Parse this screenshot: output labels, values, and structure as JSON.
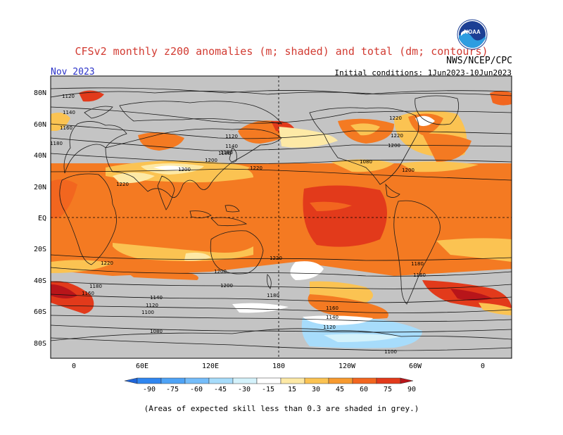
{
  "header": {
    "title": "CFSv2 monthly z200 anomalies (m; shaded) and total (dm; contours)",
    "month": "Nov 2023",
    "agency": "NWS/NCEP/CPC",
    "initial_conditions": "Initial conditions: 1Jun2023-10Jun2023",
    "logo_text": "NOAA"
  },
  "map": {
    "lat_labels": [
      "80N",
      "60N",
      "40N",
      "20N",
      "EQ",
      "20S",
      "40S",
      "60S",
      "80S"
    ],
    "lon_labels": [
      "0",
      "60E",
      "120E",
      "180",
      "120W",
      "60W",
      "0"
    ],
    "contour_labels": [
      "1120",
      "1140",
      "1160",
      "1180",
      "1200",
      "1220",
      "1220",
      "1200",
      "1180",
      "1160",
      "1140",
      "1120",
      "1100",
      "1080",
      "1120",
      "1140",
      "1160",
      "1180",
      "1200",
      "1220",
      "1220",
      "1200",
      "1180",
      "1160",
      "1140",
      "1120",
      "1100",
      "1080",
      "1200",
      "1220",
      "1220",
      "1200",
      "1180",
      "1160"
    ]
  },
  "colorbar": {
    "labels": [
      "-90",
      "-75",
      "-60",
      "-45",
      "-30",
      "-15",
      "15",
      "30",
      "45",
      "60",
      "75",
      "90"
    ],
    "colors": [
      "#1e64d8",
      "#2f86f0",
      "#4ea3f6",
      "#75bdfa",
      "#a7dcfb",
      "#d4f2fb",
      "#ffffff",
      "#fde9a6",
      "#fbc352",
      "#f79a2f",
      "#f2661f",
      "#e23a1b",
      "#b8151a"
    ]
  },
  "note": "(Areas of expected skill less than 0.3 are shaded in grey.)"
}
